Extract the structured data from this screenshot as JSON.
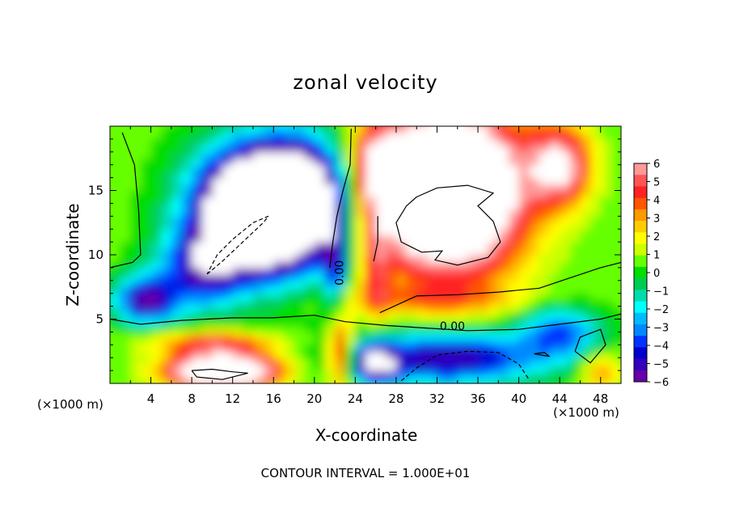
{
  "chart_data": {
    "type": "heatmap",
    "title": "zonal velocity",
    "xlabel": "X-coordinate",
    "ylabel": "Z-coordinate",
    "x_unit_left": "(×1000 m)",
    "x_unit_right": "(×1000 m)",
    "footer": "CONTOUR INTERVAL = 1.000E+01",
    "xlim": [
      0,
      50
    ],
    "ylim": [
      0,
      20
    ],
    "x_ticks": [
      4,
      8,
      12,
      16,
      20,
      24,
      28,
      32,
      36,
      40,
      44,
      48
    ],
    "y_ticks": [
      5,
      10,
      15
    ],
    "x_tick_labels": [
      "4",
      "8",
      "12",
      "16",
      "20",
      "24",
      "28",
      "32",
      "36",
      "40",
      "44",
      "48"
    ],
    "y_tick_labels": [
      "5",
      "10",
      "15"
    ],
    "colorbar": {
      "min": -6,
      "max": 6,
      "labels": [
        "6",
        "5",
        "4",
        "3",
        "2",
        "1",
        "0",
        "−1",
        "−2",
        "−3",
        "−4",
        "−5",
        "−6"
      ],
      "colors": [
        "#ff9999",
        "#ff5555",
        "#ff2222",
        "#ff5500",
        "#ff9900",
        "#ffcc00",
        "#ffff00",
        "#ccff00",
        "#66ff00",
        "#00dd00",
        "#00cc55",
        "#00ddaa",
        "#00ffff",
        "#00bbff",
        "#0088ff",
        "#0033ff",
        "#0000cc",
        "#3300bb",
        "#6600aa"
      ]
    },
    "contour_labels": [
      {
        "text": "0.00",
        "x": 22.5,
        "y": 8.6,
        "angle": -90
      },
      {
        "text": "0.00",
        "x": 33.5,
        "y": 4.4,
        "angle": 0
      }
    ],
    "saturated_fill": "#ffffff"
  }
}
